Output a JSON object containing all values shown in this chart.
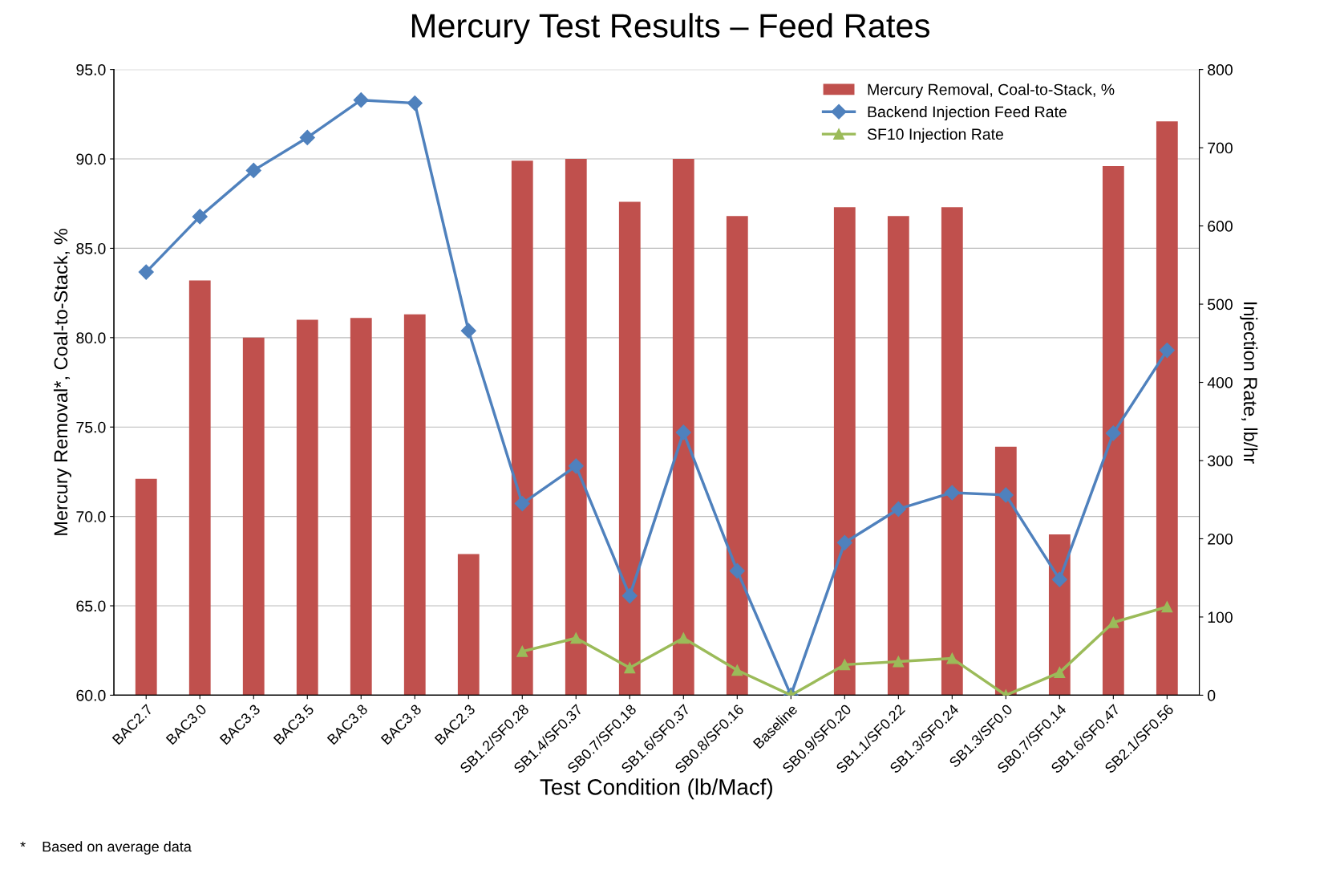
{
  "chart_data": {
    "type": "bar",
    "title": "Mercury Test Results – Feed Rates",
    "xlabel": "Test Condition (lb/Macf)",
    "ylabel": "Mercury Removal*, Coal-to-Stack, %",
    "y2label": "Injection Rate, lb/hr",
    "categories": [
      "BAC2.7",
      "BAC3.0",
      "BAC3.3",
      "BAC3.5",
      "BAC3.8",
      "BAC3.8",
      "BAC2.3",
      "SB1.2/SF0.28",
      "SB1.4/SF0.37",
      "SB0.7/SF0.18",
      "SB1.6/SF0.37",
      "SB0.8/SF0.16",
      "Baseline",
      "SB0.9/SF0.20",
      "SB1.1/SF0.22",
      "SB1.3/SF0.24",
      "SB1.3/SF0.0",
      "SB0.7/SF0.14",
      "SB1.6/SF0.47",
      "SB2.1/SF0.56"
    ],
    "series": [
      {
        "name": "Mercury Removal, Coal-to-Stack, %",
        "color": "#c0504d",
        "values": [
          72.1,
          83.2,
          80.0,
          81.0,
          81.1,
          81.3,
          67.9,
          89.9,
          90.0,
          87.6,
          90.0,
          86.8,
          null,
          87.3,
          86.8,
          87.3,
          73.9,
          69.0,
          89.6,
          92.1
        ]
      },
      {
        "name": "Backend Injection Feed Rate",
        "type": "line",
        "axis": "y2",
        "marker": "diamond",
        "color": "#4f81bd",
        "values": [
          541,
          612,
          671,
          713,
          761,
          757,
          466,
          245,
          293,
          127,
          336,
          159,
          0,
          195,
          238,
          259,
          256,
          148,
          335,
          441
        ]
      },
      {
        "name": "SF10 Injection Rate",
        "type": "line",
        "axis": "y2",
        "marker": "triangle",
        "color": "#9bbb59",
        "values": [
          null,
          null,
          null,
          null,
          null,
          null,
          null,
          56,
          73,
          35,
          73,
          32,
          0,
          39,
          43,
          47,
          0,
          29,
          93,
          113
        ]
      }
    ],
    "ylim": [
      60,
      95
    ],
    "yticks": [
      {
        "value": 60,
        "label": "60.0"
      },
      {
        "value": 65,
        "label": "65.0"
      },
      {
        "value": 70,
        "label": "70.0"
      },
      {
        "value": 75,
        "label": "75.0"
      },
      {
        "value": 80,
        "label": "80.0"
      },
      {
        "value": 85,
        "label": "85.0"
      },
      {
        "value": 90,
        "label": "90.0"
      },
      {
        "value": 95,
        "label": "95.0"
      }
    ],
    "y2lim": [
      0,
      800
    ],
    "y2ticks": [
      0,
      100,
      200,
      300,
      400,
      500,
      600,
      700,
      800
    ],
    "grid": "y",
    "legend": "top right",
    "line_style": "solid",
    "annotations": [
      "*    Based on average data"
    ]
  }
}
